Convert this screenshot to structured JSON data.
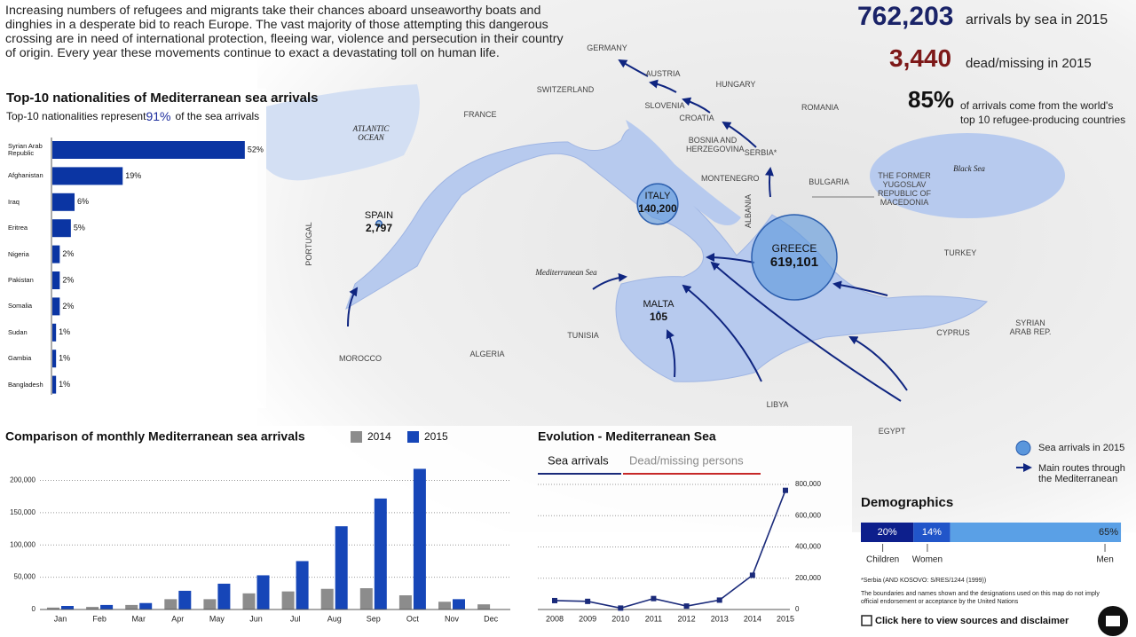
{
  "intro": "Increasing numbers of refugees and migrants take their chances aboard unseaworthy boats and dinghies in a desperate bid to reach Europe. The vast majority of those attempting this dangerous crossing are in need of international protection, fleeing war, violence and persecution in their country of origin. Every year these movements continue to exact a devastating toll on human life.",
  "stats": {
    "arrivals": {
      "number": "762,203",
      "text": "arrivals by sea in 2015"
    },
    "dead": {
      "number": "3,440",
      "text": "dead/missing in 2015"
    },
    "share": {
      "number": "85%",
      "text": "of arrivals come from the world's top 10 refugee-producing countries"
    }
  },
  "map": {
    "labels": [
      "GERMANY",
      "AUSTRIA",
      "SWITZERLAND",
      "HUNGARY",
      "FRANCE",
      "SLOVENIA",
      "CROATIA",
      "ROMANIA",
      "BOSNIA AND HERZEGOVINA",
      "SERBIA*",
      "MONTENEGRO",
      "BULGARIA",
      "ALBANIA",
      "THE FORMER YUGOSLAV REPUBLIC OF MACEDONIA",
      "PORTUGAL",
      "TURKEY",
      "SYRIAN ARAB REP.",
      "CYPRUS",
      "TUNISIA",
      "MOROCCO",
      "ALGERIA",
      "LIBYA",
      "EGYPT"
    ],
    "seas": [
      "ATLANTIC OCEAN",
      "Mediterranean Sea",
      "Black Sea"
    ],
    "bubbles": [
      {
        "name": "GREECE",
        "value": 619101,
        "label": "619,101"
      },
      {
        "name": "ITALY",
        "value": 140200,
        "label": "140,200"
      },
      {
        "name": "SPAIN",
        "value": 2797,
        "label": "2,797"
      },
      {
        "name": "MALTA",
        "value": 105,
        "label": "105"
      }
    ],
    "legend": {
      "bubble": "Sea arrivals in 2015",
      "route": "Main routes through the Mediterranean"
    }
  },
  "chart_data": [
    {
      "type": "bar",
      "orientation": "horizontal",
      "title": "Top-10 nationalities of Mediterranean sea arrivals",
      "subtitle": [
        "Top-10 nationalities represent",
        "91%",
        "of the sea arrivals"
      ],
      "categories": [
        "Syrian Arab Republic",
        "Afghanistan",
        "Iraq",
        "Eritrea",
        "Nigeria",
        "Pakistan",
        "Somalia",
        "Sudan",
        "Gambia",
        "Bangladesh"
      ],
      "values": [
        52,
        19,
        6,
        5,
        2,
        2,
        2,
        1,
        1,
        1
      ],
      "value_labels": [
        "52%",
        "19%",
        "6%",
        "5%",
        "2%",
        "2%",
        "2%",
        "1%",
        "1%",
        "1%"
      ],
      "color": "#0b35a3"
    },
    {
      "type": "bar",
      "title": "Comparison of monthly Mediterranean sea arrivals",
      "categories": [
        "Jan",
        "Feb",
        "Mar",
        "Apr",
        "May",
        "Jun",
        "Jul",
        "Aug",
        "Sep",
        "Oct",
        "Nov",
        "Dec"
      ],
      "series": [
        {
          "name": "2014",
          "color": "#8c8c8c",
          "values": [
            3000,
            4000,
            7000,
            16000,
            16000,
            25000,
            28000,
            32000,
            33000,
            22000,
            12000,
            8000
          ]
        },
        {
          "name": "2015",
          "color": "#1646b8",
          "values": [
            5500,
            7000,
            10000,
            29000,
            40000,
            53000,
            75000,
            129000,
            172000,
            218000,
            16000,
            null
          ]
        }
      ],
      "ylim": [
        0,
        220000
      ],
      "yticks": [
        0,
        {
          "value": 50000,
          "label": "50,000"
        },
        {
          "value": 100000,
          "label": "100,000"
        },
        {
          "value": 150000,
          "label": "150,000"
        },
        {
          "value": 200000,
          "label": "200,000"
        }
      ],
      "grid": true
    },
    {
      "type": "line",
      "title": "Evolution - Mediterranean Sea",
      "x": [
        2008,
        2009,
        2010,
        2011,
        2012,
        2013,
        2014,
        2015
      ],
      "series": [
        {
          "name": "Sea arrivals",
          "color": "#1a2a7a",
          "values": [
            57000,
            52000,
            9000,
            70000,
            22000,
            60000,
            219000,
            762000
          ]
        }
      ],
      "other_tab": {
        "name": "Dead/missing persons",
        "color": "#c62828"
      },
      "ylim": [
        0,
        800000
      ],
      "yticks": [
        0,
        {
          "value": 200000,
          "label": "200,000"
        },
        {
          "value": 400000,
          "label": "400,000"
        },
        {
          "value": 600000,
          "label": "600,000"
        },
        {
          "value": 800000,
          "label": "800,000"
        }
      ],
      "grid": true
    },
    {
      "type": "stacked_bar",
      "title": "Demographics",
      "series": [
        {
          "name": "Children",
          "color": "#0d1f8c",
          "values": [
            20
          ],
          "value_labels": [
            "20%"
          ]
        },
        {
          "name": "Women",
          "color": "#2155c9",
          "values": [
            14
          ],
          "value_labels": [
            "14%"
          ]
        },
        {
          "name": "Men",
          "color": "#5aa0e6",
          "values": [
            65
          ],
          "value_labels": [
            "65%"
          ]
        }
      ]
    }
  ],
  "notes": [
    "*Serbia (AND KOSOVO: S/RES/1244 (1999))",
    "The boundaries and names shown and the designations used on this map do not imply official endorsement or acceptance by the United Nations"
  ],
  "link": "Click here to view sources and disclaimer"
}
